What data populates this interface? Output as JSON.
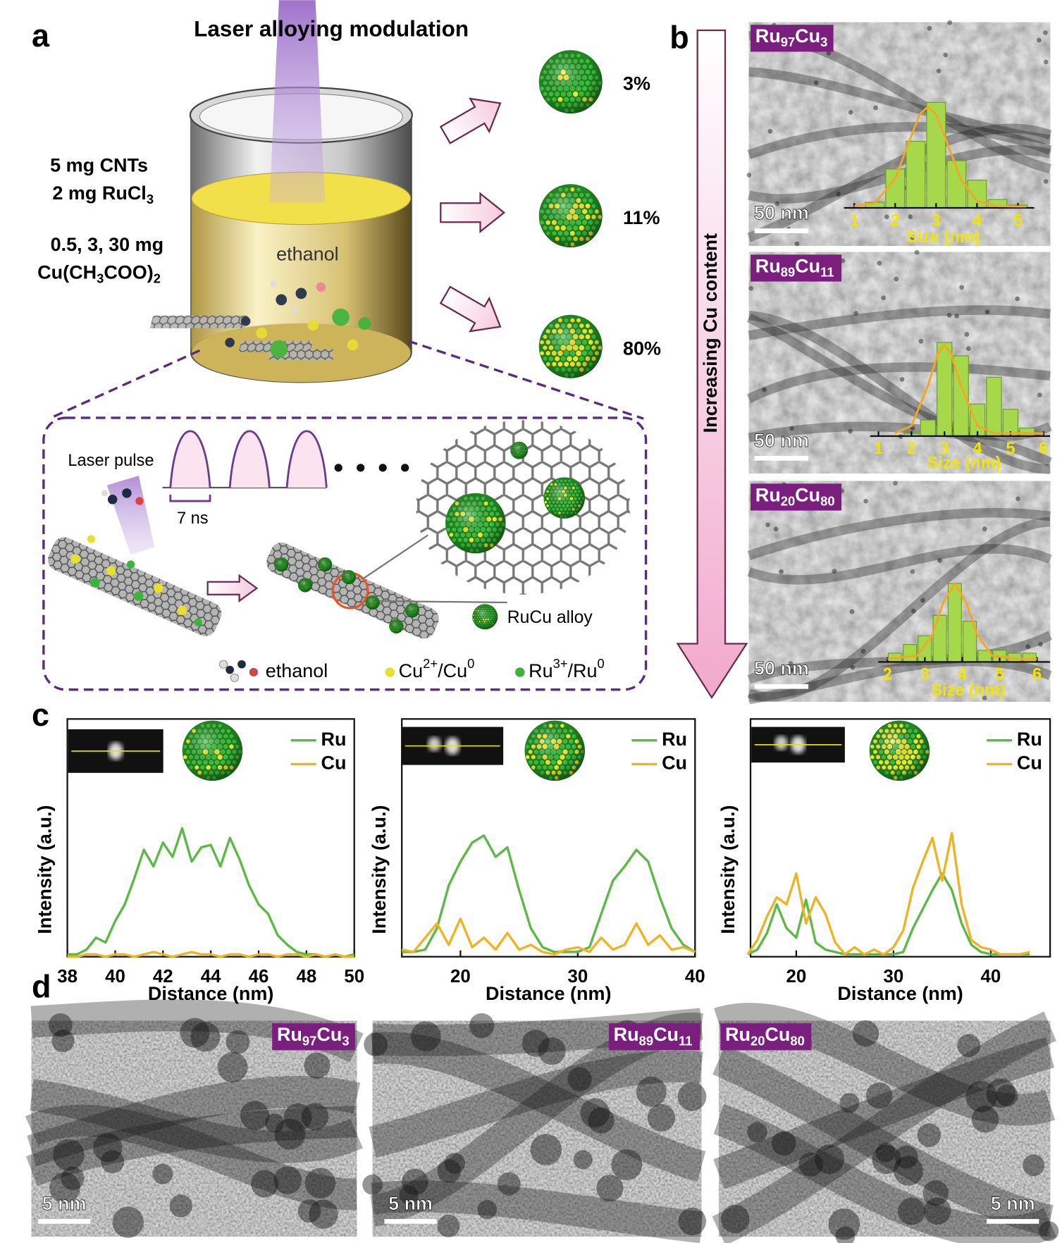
{
  "panel_letters": [
    "a",
    "b",
    "c",
    "d"
  ],
  "panel_a": {
    "title": "Laser alloying modulation",
    "reagents": [
      [
        "5 mg CNTs"
      ],
      [
        "2 mg RuCl",
        "3"
      ],
      [
        "0.5, 3, 30 mg"
      ],
      [
        "Cu(CH",
        "3",
        "COO)",
        "2"
      ]
    ],
    "solvent": "ethanol",
    "products": [
      "3%",
      "11%",
      "80%"
    ],
    "pulse_label": "Laser pulse",
    "pulse_width": "7 ns",
    "alloy_label": "RuCu alloy",
    "legend": [
      [
        "ethanol"
      ],
      [
        "Cu",
        "2+",
        "/Cu",
        "0"
      ],
      [
        "Ru",
        "3+",
        "/Ru",
        "0"
      ]
    ]
  },
  "panel_b": {
    "arrow_label": "Increasing Cu content",
    "images": [
      {
        "label": [
          "Ru",
          "97",
          "Cu",
          "3"
        ],
        "scale": "50 nm"
      },
      {
        "label": [
          "Ru",
          "89",
          "Cu",
          "11"
        ],
        "scale": "50 nm"
      },
      {
        "label": [
          "Ru",
          "20",
          "Cu",
          "80"
        ],
        "scale": "50 nm"
      }
    ]
  },
  "panel_d": {
    "images": [
      {
        "label": [
          "Ru",
          "97",
          "Cu",
          "3"
        ],
        "scale": "5 nm"
      },
      {
        "label": [
          "Ru",
          "89",
          "Cu",
          "11"
        ],
        "scale": "5 nm"
      },
      {
        "label": [
          "Ru",
          "20",
          "Cu",
          "80"
        ],
        "scale": "5 nm"
      }
    ]
  },
  "chart_data": [
    {
      "type": "histogram",
      "xlabel": "Size (nm)",
      "bins": [
        1.25,
        1.75,
        2.25,
        2.75,
        3.25,
        3.75,
        4.25,
        4.75,
        5.25
      ],
      "values": [
        2,
        14,
        24,
        38,
        17,
        10,
        3,
        1
      ],
      "color": "#a5d84b",
      "label_color": "#f2e600",
      "xlim": [
        0.75,
        5.4
      ],
      "ylim": [
        0,
        40
      ],
      "xticks": [
        1,
        2,
        3,
        4,
        5
      ],
      "fit": {
        "color": "#f5a623",
        "x": [
          1.0,
          1.5,
          2.0,
          2.3,
          2.6,
          2.8,
          3.0,
          3.3,
          3.6,
          4.0,
          4.5,
          5.0,
          5.2
        ],
        "values": [
          0.6,
          1.7,
          10.5,
          22.3,
          33.7,
          36.5,
          33.7,
          22.3,
          10.5,
          2.5,
          0.6,
          0.5,
          0.5
        ]
      }
    },
    {
      "type": "histogram",
      "xlabel": "Size (nm)",
      "bins": [
        1.75,
        2.25,
        2.75,
        3.25,
        3.75,
        4.25,
        4.75,
        5.25,
        5.75
      ],
      "values": [
        1,
        6,
        35,
        30,
        12,
        22,
        10,
        3
      ],
      "color": "#a5d84b",
      "label_color": "#f2e600",
      "xlim": [
        0.75,
        6.2
      ],
      "ylim": [
        0,
        40
      ],
      "xticks": [
        1,
        2,
        3,
        4,
        5,
        6
      ],
      "fit": {
        "color": "#f5a623",
        "x": [
          1.5,
          2.0,
          2.5,
          2.8,
          3.0,
          3.2,
          3.5,
          4.0,
          4.5,
          5.0,
          6.0
        ],
        "values": [
          1.1,
          3.8,
          18.8,
          30.9,
          34,
          30.9,
          18.8,
          3.8,
          1.1,
          1,
          1
        ]
      }
    },
    {
      "type": "histogram",
      "xlabel": "Size (nm)",
      "bins": [
        2.0,
        2.4,
        2.8,
        3.2,
        3.6,
        4.0,
        4.4,
        4.8,
        5.2,
        5.6,
        6.0
      ],
      "values": [
        3,
        6,
        9,
        16,
        27,
        14,
        4,
        4,
        3,
        3
      ],
      "color": "#a5d84b",
      "label_color": "#f2e600",
      "xlim": [
        1.75,
        6.35
      ],
      "ylim": [
        0,
        30
      ],
      "xticks": [
        2,
        3,
        4,
        5,
        6
      ],
      "fit": {
        "color": "#f5a623",
        "x": [
          2.0,
          2.8,
          3.2,
          3.5,
          3.8,
          4.1,
          4.4,
          4.8,
          5.5,
          6.0
        ],
        "values": [
          1,
          2.1,
          9.4,
          20.6,
          27,
          20.6,
          9.4,
          2.1,
          1,
          1
        ]
      }
    },
    {
      "type": "line",
      "xlabel": "Distance (nm)",
      "ylabel": "Intensity (a.u.)",
      "xlim": [
        38,
        50
      ],
      "ylim": [
        0,
        100
      ],
      "xticks": [
        38,
        40,
        42,
        44,
        46,
        48,
        50
      ],
      "x": [
        38.0,
        38.4,
        38.8,
        39.2,
        39.6,
        40.0,
        40.4,
        40.8,
        41.2,
        41.6,
        42.0,
        42.4,
        42.8,
        43.2,
        43.6,
        44.0,
        44.4,
        44.8,
        45.2,
        45.6,
        46.0,
        46.4,
        46.8,
        47.2,
        47.6,
        48.0,
        48.4,
        48.8,
        49.2,
        49.6,
        50.0
      ],
      "series": [
        {
          "name": "Ru",
          "color": "#5cb946",
          "values": [
            1,
            1,
            3,
            8,
            6,
            15,
            22,
            33,
            45,
            38,
            48,
            42,
            54,
            40,
            46,
            47,
            38,
            50,
            41,
            30,
            22,
            18,
            9,
            5,
            2,
            1,
            1,
            0,
            1,
            0,
            1
          ]
        },
        {
          "name": "Cu",
          "color": "#f0b323",
          "values": [
            0,
            0,
            1,
            1,
            0,
            1,
            1,
            0,
            1,
            2,
            1,
            0,
            1,
            2,
            1,
            1,
            0,
            1,
            1,
            0,
            1,
            1,
            0,
            1,
            1,
            0,
            1,
            0,
            1,
            0,
            0
          ]
        }
      ]
    },
    {
      "type": "line",
      "xlabel": "Distance (nm)",
      "ylabel": "Intensity (a.u.)",
      "xlim": [
        15,
        40
      ],
      "ylim": [
        0,
        100
      ],
      "xticks": [
        20,
        30,
        40
      ],
      "x": [
        15,
        16,
        17,
        18,
        19,
        20,
        21,
        22,
        23,
        24,
        25,
        26,
        27,
        28,
        29,
        30,
        31,
        32,
        33,
        34,
        35,
        36,
        37,
        38,
        39,
        40
      ],
      "series": [
        {
          "name": "Ru",
          "color": "#5cb946",
          "values": [
            2,
            2,
            3,
            12,
            30,
            40,
            48,
            51,
            42,
            46,
            28,
            12,
            4,
            2,
            2,
            2,
            4,
            18,
            32,
            38,
            45,
            40,
            25,
            12,
            5,
            2
          ]
        },
        {
          "name": "Cu",
          "color": "#f0b323",
          "values": [
            3,
            2,
            8,
            14,
            5,
            16,
            4,
            8,
            3,
            10,
            3,
            5,
            2,
            1,
            3,
            4,
            2,
            8,
            3,
            5,
            14,
            5,
            9,
            3,
            4,
            2
          ]
        }
      ]
    },
    {
      "type": "line",
      "xlabel": "Distance (nm)",
      "ylabel": "Intensity (a.u.)",
      "xlim": [
        15.3,
        46.1
      ],
      "ylim": [
        0,
        100
      ],
      "xticks": [
        20,
        30,
        40
      ],
      "x": [
        15,
        16,
        17,
        18,
        19,
        20,
        21,
        22,
        23,
        24,
        25,
        26,
        27,
        28,
        29,
        30,
        31,
        32,
        33,
        34,
        35,
        36,
        37,
        38,
        39,
        40,
        41,
        42,
        43,
        44
      ],
      "series": [
        {
          "name": "Ru",
          "color": "#5cb946",
          "values": [
            1,
            3,
            10,
            22,
            12,
            8,
            24,
            6,
            3,
            2,
            1,
            1,
            1,
            1,
            1,
            1,
            2,
            12,
            20,
            28,
            35,
            28,
            14,
            5,
            2,
            1,
            1,
            1,
            1,
            1
          ]
        },
        {
          "name": "Cu",
          "color": "#f0b323",
          "values": [
            1,
            7,
            17,
            25,
            22,
            35,
            14,
            25,
            18,
            6,
            1,
            4,
            1,
            3,
            1,
            4,
            11,
            29,
            40,
            50,
            32,
            52,
            22,
            7,
            4,
            3,
            1,
            1,
            1,
            2
          ]
        }
      ]
    }
  ]
}
